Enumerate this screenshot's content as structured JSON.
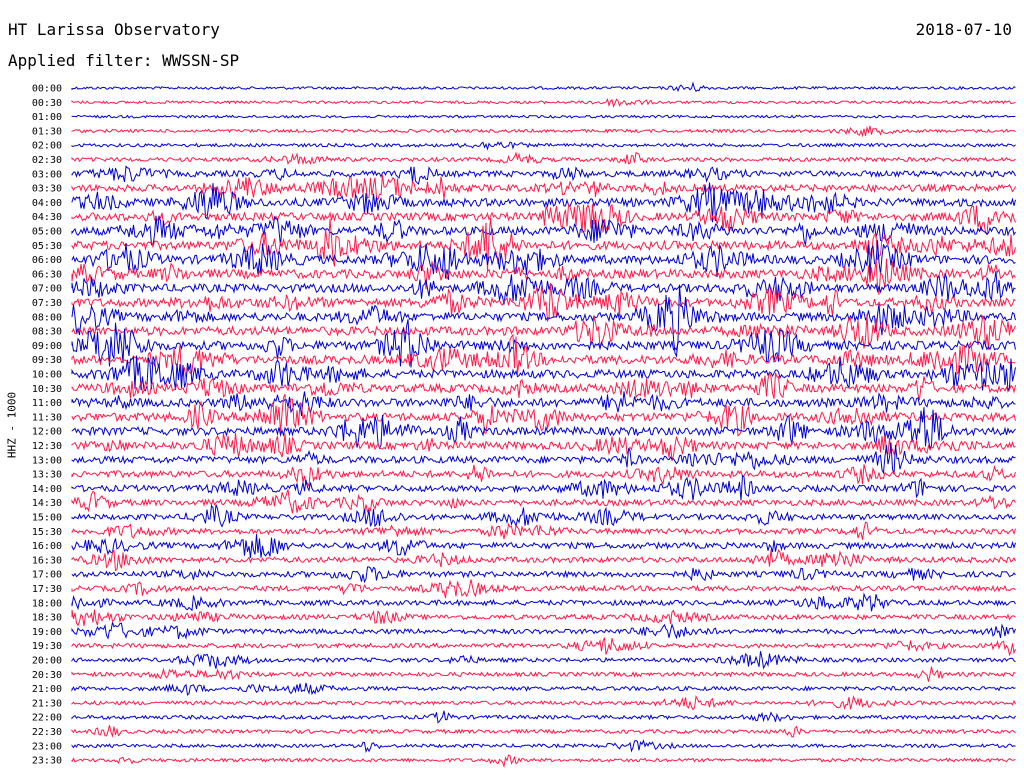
{
  "header": {
    "title": "HT Larissa Observatory",
    "date": "2018-07-10",
    "filter": "Applied filter: WWSSN-SP"
  },
  "colors": {
    "line_a": "#0000cc",
    "line_b": "#ff1a4a",
    "text": "#000000"
  },
  "chart_data": {
    "type": "line",
    "ylabel": "HHZ - 1000",
    "row_labels": [
      "00:00",
      "00:30",
      "01:00",
      "01:30",
      "02:00",
      "02:30",
      "03:00",
      "03:30",
      "04:00",
      "04:30",
      "05:00",
      "05:30",
      "06:00",
      "06:30",
      "07:00",
      "07:30",
      "08:00",
      "08:30",
      "09:00",
      "09:30",
      "10:00",
      "10:30",
      "11:00",
      "11:30",
      "12:00",
      "12:30",
      "13:00",
      "13:30",
      "14:00",
      "14:30",
      "15:00",
      "15:30",
      "16:00",
      "16:30",
      "17:00",
      "17:30",
      "18:00",
      "18:30",
      "19:00",
      "19:30",
      "20:00",
      "20:30",
      "21:00",
      "21:30",
      "22:00",
      "22:30",
      "23:00",
      "23:30"
    ],
    "row_colors": [
      "line_a",
      "line_b"
    ],
    "activity": [
      0.1,
      0.1,
      0.08,
      0.15,
      0.18,
      0.3,
      0.55,
      0.7,
      0.85,
      0.85,
      0.9,
      0.95,
      0.95,
      0.95,
      0.9,
      0.9,
      0.9,
      0.95,
      0.95,
      0.95,
      0.9,
      0.9,
      0.9,
      0.9,
      0.85,
      0.8,
      0.7,
      0.65,
      0.6,
      0.55,
      0.5,
      0.5,
      0.55,
      0.5,
      0.5,
      0.45,
      0.45,
      0.4,
      0.4,
      0.35,
      0.3,
      0.3,
      0.3,
      0.25,
      0.25,
      0.25,
      0.2,
      0.2
    ]
  }
}
